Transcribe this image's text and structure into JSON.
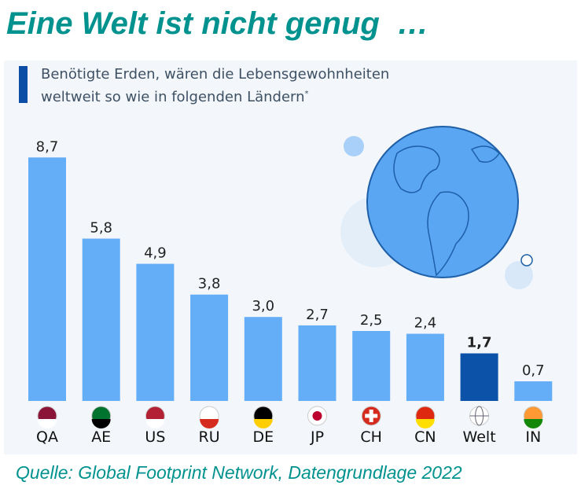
{
  "title": "Eine Welt ist nicht genug  …",
  "subtitle": {
    "line1": "Benötigte Erden, wären die Lebensgewohnheiten",
    "line2": "weltweit so wie in folgenden Ländern",
    "footnote_mark": "*"
  },
  "source": "Quelle: Global Footprint Network, Datengrundlage 2022",
  "colors": {
    "bar": "#64adf7",
    "highlight": "#0b52a8",
    "title": "#00928f"
  },
  "chart_data": {
    "type": "bar",
    "categories": [
      "QA",
      "AE",
      "US",
      "RU",
      "DE",
      "JP",
      "CH",
      "CN",
      "Welt",
      "IN"
    ],
    "values": [
      8.7,
      5.8,
      4.9,
      3.8,
      3.0,
      2.7,
      2.5,
      2.4,
      1.7,
      0.7
    ],
    "value_labels": [
      "8,7",
      "5,8",
      "4,9",
      "3,8",
      "3,0",
      "2,7",
      "2,5",
      "2,4",
      "1,7",
      "0,7"
    ],
    "highlight": "Welt",
    "ylim": [
      0,
      9
    ],
    "grid": false
  }
}
